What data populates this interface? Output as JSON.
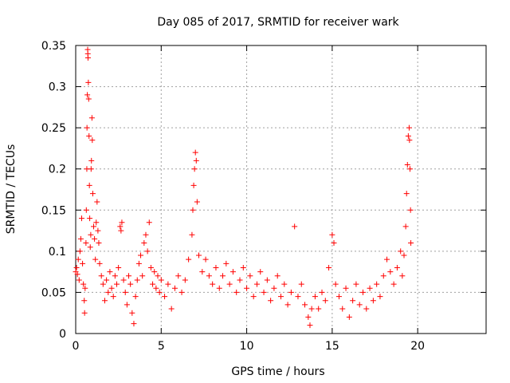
{
  "chart_data": {
    "type": "scatter",
    "title": "Day 085 of 2017, SRMTID for receiver wark",
    "xlabel": "GPS time / hours",
    "ylabel": "SRMTID / TECUs",
    "xlim": [
      0,
      24
    ],
    "ylim": [
      0,
      0.35
    ],
    "x_ticks": [
      0,
      5,
      10,
      15,
      20
    ],
    "x_tick_labels": [
      "0",
      "5",
      "10",
      "15",
      "20"
    ],
    "y_ticks": [
      0,
      0.05,
      0.1,
      0.15,
      0.2,
      0.25,
      0.3,
      0.35
    ],
    "y_tick_labels": [
      "0",
      "0.05",
      "0.1",
      "0.15",
      "0.2",
      "0.25",
      "0.3",
      "0.35"
    ],
    "grid": true,
    "marker": "+",
    "color": "#ff0000",
    "series": [
      {
        "name": "SRMTID",
        "points": [
          [
            0.0,
            0.075
          ],
          [
            0.05,
            0.08
          ],
          [
            0.1,
            0.072
          ],
          [
            0.15,
            0.09
          ],
          [
            0.2,
            0.065
          ],
          [
            0.25,
            0.1
          ],
          [
            0.3,
            0.115
          ],
          [
            0.35,
            0.14
          ],
          [
            0.4,
            0.085
          ],
          [
            0.45,
            0.06
          ],
          [
            0.5,
            0.04
          ],
          [
            0.52,
            0.025
          ],
          [
            0.55,
            0.055
          ],
          [
            0.6,
            0.11
          ],
          [
            0.62,
            0.15
          ],
          [
            0.65,
            0.2
          ],
          [
            0.66,
            0.25
          ],
          [
            0.68,
            0.29
          ],
          [
            0.7,
            0.345
          ],
          [
            0.71,
            0.34
          ],
          [
            0.72,
            0.335
          ],
          [
            0.74,
            0.305
          ],
          [
            0.76,
            0.285
          ],
          [
            0.78,
            0.24
          ],
          [
            0.8,
            0.18
          ],
          [
            0.82,
            0.14
          ],
          [
            0.85,
            0.105
          ],
          [
            0.88,
            0.12
          ],
          [
            0.9,
            0.2
          ],
          [
            0.92,
            0.21
          ],
          [
            0.95,
            0.262
          ],
          [
            0.97,
            0.235
          ],
          [
            1.0,
            0.17
          ],
          [
            1.05,
            0.13
          ],
          [
            1.1,
            0.115
          ],
          [
            1.15,
            0.09
          ],
          [
            1.2,
            0.135
          ],
          [
            1.25,
            0.16
          ],
          [
            1.3,
            0.125
          ],
          [
            1.35,
            0.11
          ],
          [
            1.4,
            0.085
          ],
          [
            1.5,
            0.07
          ],
          [
            1.6,
            0.06
          ],
          [
            1.7,
            0.04
          ],
          [
            1.8,
            0.065
          ],
          [
            1.9,
            0.05
          ],
          [
            2.0,
            0.075
          ],
          [
            2.1,
            0.055
          ],
          [
            2.2,
            0.045
          ],
          [
            2.3,
            0.07
          ],
          [
            2.4,
            0.06
          ],
          [
            2.5,
            0.08
          ],
          [
            2.6,
            0.13
          ],
          [
            2.65,
            0.125
          ],
          [
            2.7,
            0.135
          ],
          [
            2.8,
            0.065
          ],
          [
            2.9,
            0.05
          ],
          [
            3.0,
            0.035
          ],
          [
            3.1,
            0.07
          ],
          [
            3.2,
            0.06
          ],
          [
            3.3,
            0.025
          ],
          [
            3.4,
            0.012
          ],
          [
            3.5,
            0.045
          ],
          [
            3.6,
            0.065
          ],
          [
            3.7,
            0.085
          ],
          [
            3.8,
            0.095
          ],
          [
            3.9,
            0.07
          ],
          [
            4.0,
            0.11
          ],
          [
            4.1,
            0.12
          ],
          [
            4.2,
            0.1
          ],
          [
            4.3,
            0.135
          ],
          [
            4.4,
            0.08
          ],
          [
            4.5,
            0.06
          ],
          [
            4.6,
            0.075
          ],
          [
            4.7,
            0.055
          ],
          [
            4.8,
            0.07
          ],
          [
            4.9,
            0.05
          ],
          [
            5.0,
            0.065
          ],
          [
            5.2,
            0.045
          ],
          [
            5.4,
            0.06
          ],
          [
            5.6,
            0.03
          ],
          [
            5.8,
            0.055
          ],
          [
            6.0,
            0.07
          ],
          [
            6.2,
            0.05
          ],
          [
            6.4,
            0.065
          ],
          [
            6.6,
            0.09
          ],
          [
            6.8,
            0.12
          ],
          [
            6.85,
            0.15
          ],
          [
            6.9,
            0.18
          ],
          [
            6.95,
            0.2
          ],
          [
            7.0,
            0.22
          ],
          [
            7.05,
            0.21
          ],
          [
            7.1,
            0.16
          ],
          [
            7.2,
            0.095
          ],
          [
            7.4,
            0.075
          ],
          [
            7.6,
            0.09
          ],
          [
            7.8,
            0.07
          ],
          [
            8.0,
            0.06
          ],
          [
            8.2,
            0.08
          ],
          [
            8.4,
            0.055
          ],
          [
            8.6,
            0.07
          ],
          [
            8.8,
            0.085
          ],
          [
            9.0,
            0.06
          ],
          [
            9.2,
            0.075
          ],
          [
            9.4,
            0.05
          ],
          [
            9.6,
            0.065
          ],
          [
            9.8,
            0.08
          ],
          [
            10.0,
            0.055
          ],
          [
            10.2,
            0.07
          ],
          [
            10.4,
            0.045
          ],
          [
            10.6,
            0.06
          ],
          [
            10.8,
            0.075
          ],
          [
            11.0,
            0.05
          ],
          [
            11.2,
            0.065
          ],
          [
            11.4,
            0.04
          ],
          [
            11.6,
            0.055
          ],
          [
            11.8,
            0.07
          ],
          [
            12.0,
            0.045
          ],
          [
            12.2,
            0.06
          ],
          [
            12.4,
            0.035
          ],
          [
            12.6,
            0.05
          ],
          [
            12.8,
            0.13
          ],
          [
            13.0,
            0.045
          ],
          [
            13.2,
            0.06
          ],
          [
            13.4,
            0.035
          ],
          [
            13.6,
            0.02
          ],
          [
            13.7,
            0.01
          ],
          [
            13.8,
            0.03
          ],
          [
            14.0,
            0.045
          ],
          [
            14.2,
            0.03
          ],
          [
            14.4,
            0.05
          ],
          [
            14.6,
            0.04
          ],
          [
            14.8,
            0.08
          ],
          [
            15.0,
            0.12
          ],
          [
            15.1,
            0.11
          ],
          [
            15.2,
            0.06
          ],
          [
            15.4,
            0.045
          ],
          [
            15.6,
            0.03
          ],
          [
            15.8,
            0.055
          ],
          [
            16.0,
            0.02
          ],
          [
            16.2,
            0.04
          ],
          [
            16.4,
            0.06
          ],
          [
            16.6,
            0.035
          ],
          [
            16.8,
            0.05
          ],
          [
            17.0,
            0.03
          ],
          [
            17.2,
            0.055
          ],
          [
            17.4,
            0.04
          ],
          [
            17.6,
            0.06
          ],
          [
            17.8,
            0.045
          ],
          [
            18.0,
            0.07
          ],
          [
            18.2,
            0.09
          ],
          [
            18.4,
            0.075
          ],
          [
            18.6,
            0.06
          ],
          [
            18.8,
            0.08
          ],
          [
            19.0,
            0.1
          ],
          [
            19.1,
            0.07
          ],
          [
            19.2,
            0.095
          ],
          [
            19.3,
            0.13
          ],
          [
            19.35,
            0.17
          ],
          [
            19.4,
            0.205
          ],
          [
            19.45,
            0.24
          ],
          [
            19.5,
            0.25
          ],
          [
            19.52,
            0.235
          ],
          [
            19.55,
            0.2
          ],
          [
            19.58,
            0.15
          ],
          [
            19.6,
            0.11
          ]
        ]
      }
    ]
  }
}
